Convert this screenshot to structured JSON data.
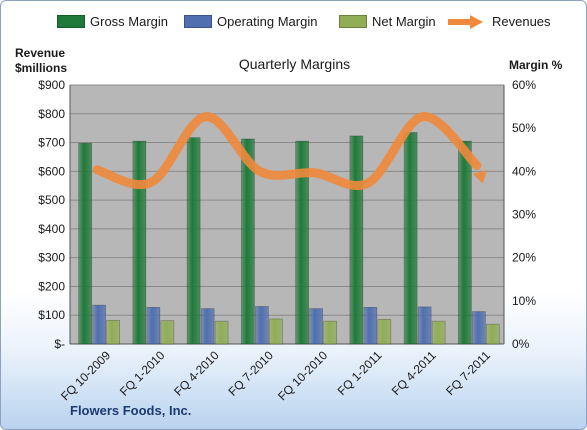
{
  "legend": [
    {
      "label": "Gross Margin",
      "color": "#1f7a3a"
    },
    {
      "label": "Operating Margin",
      "color": "#4f6fb0"
    },
    {
      "label": "Net Margin",
      "color": "#8fae55"
    },
    {
      "label": "Revenues",
      "color": "#f0893b"
    }
  ],
  "titles": {
    "chart": "Quarterly Margins",
    "left_axis_line1": "Revenue",
    "left_axis_line2": "$millions",
    "right_axis": "Margin %",
    "company": "Flowers Foods, Inc."
  },
  "colors": {
    "gross": "#1f7a3a",
    "operating": "#4f6fb0",
    "net": "#8fae55",
    "revenues": "#f0893b",
    "plot_bg": "#b7b7b7",
    "grid": "#8a8a8a"
  },
  "chart_data": {
    "type": "bar",
    "categories": [
      "FQ 10-2009",
      "FQ 1-2010",
      "FQ 4-2010",
      "FQ 7-2010",
      "FQ 10-2010",
      "FQ 1-2011",
      "FQ 4-2011",
      "FQ 7-2011"
    ],
    "series": [
      {
        "name": "Gross Margin",
        "axis": "right",
        "values": [
          46.5,
          47.0,
          47.8,
          47.5,
          47.0,
          48.2,
          49.0,
          47.0
        ]
      },
      {
        "name": "Operating Margin",
        "axis": "right",
        "values": [
          9.0,
          8.5,
          8.2,
          8.7,
          8.2,
          8.5,
          8.6,
          7.5
        ]
      },
      {
        "name": "Net Margin",
        "axis": "right",
        "values": [
          5.5,
          5.4,
          5.3,
          5.8,
          5.3,
          5.7,
          5.3,
          4.6
        ]
      },
      {
        "name": "Revenues",
        "axis": "left",
        "type": "line",
        "values": [
          605,
          562,
          790,
          600,
          595,
          560,
          790,
          620
        ]
      }
    ],
    "left_axis": {
      "label": "Revenue $millions",
      "ylim": [
        0,
        900
      ],
      "ticks": [
        "$-",
        "$100",
        "$200",
        "$300",
        "$400",
        "$500",
        "$600",
        "$700",
        "$800",
        "$900"
      ]
    },
    "right_axis": {
      "label": "Margin %",
      "ylim": [
        0,
        60
      ],
      "ticks": [
        "0%",
        "10%",
        "20%",
        "30%",
        "40%",
        "50%",
        "60%"
      ]
    },
    "title": "Quarterly Margins",
    "grid": true,
    "legend_position": "top"
  }
}
